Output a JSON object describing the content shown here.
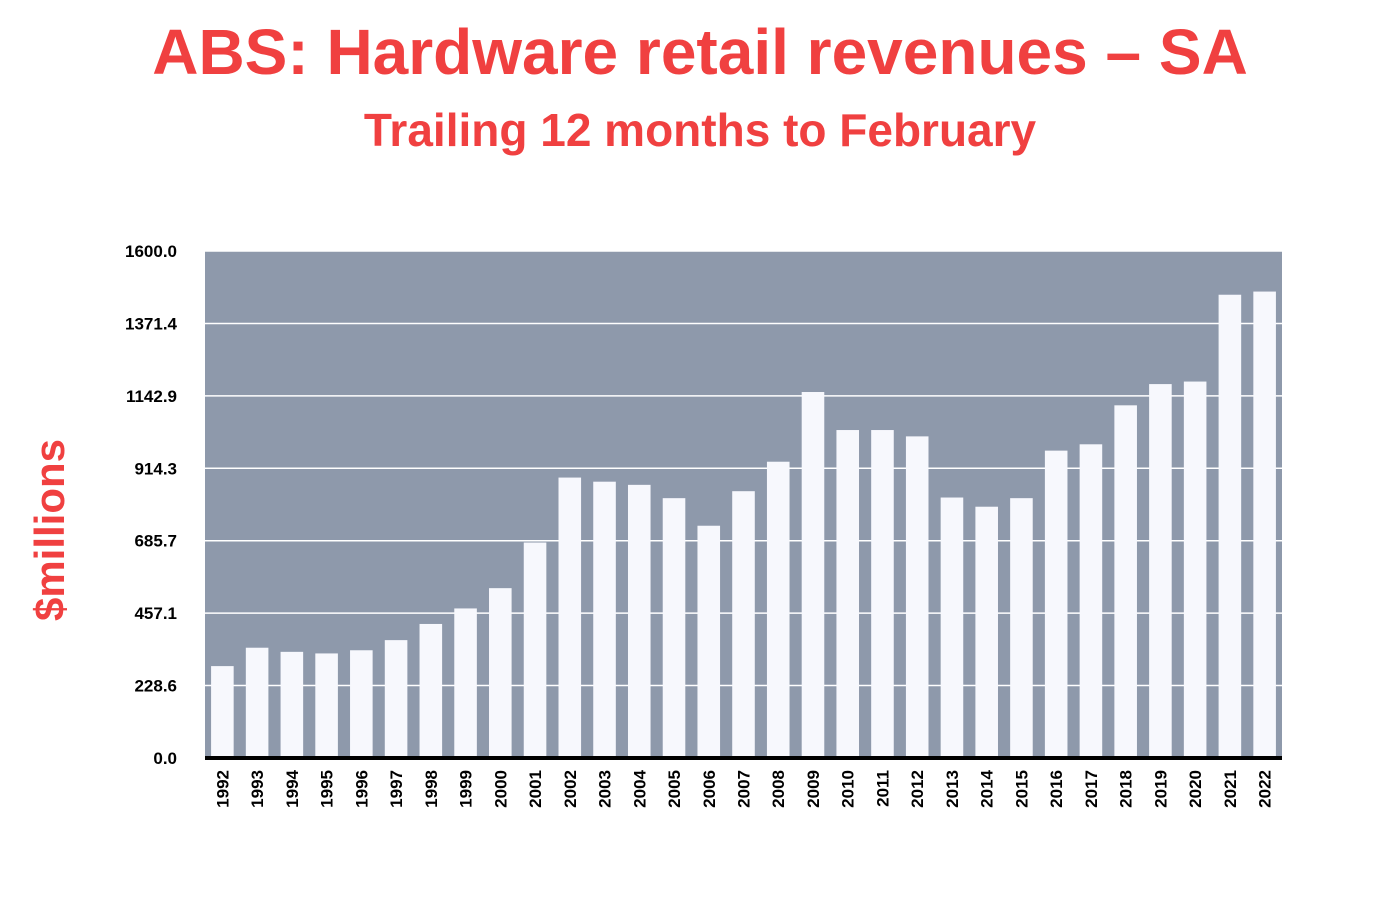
{
  "colors": {
    "title": "#f04040",
    "plot_bg": "#8e99ab",
    "bar": "#f7f8fd",
    "grid": "#ffffff",
    "axis": "#000000"
  },
  "chart_data": {
    "type": "bar",
    "title": "ABS: Hardware retail revenues – SA",
    "subtitle": "Trailing 12 months to February",
    "xlabel": "",
    "ylabel": "$millions",
    "ylim": [
      0,
      1600
    ],
    "yticks": [
      "0.0",
      "228.6",
      "457.1",
      "685.7",
      "914.3",
      "1142.9",
      "1371.4",
      "1600.0"
    ],
    "grid": true,
    "legend": "none",
    "categories": [
      "1992",
      "1993",
      "1994",
      "1995",
      "1996",
      "1997",
      "1998",
      "1999",
      "2000",
      "2001",
      "2002",
      "2003",
      "2004",
      "2005",
      "2006",
      "2007",
      "2008",
      "2009",
      "2010",
      "2011",
      "2012",
      "2013",
      "2014",
      "2015",
      "2016",
      "2017",
      "2018",
      "2019",
      "2020",
      "2021",
      "2022"
    ],
    "values": [
      290,
      348,
      335,
      330,
      340,
      372,
      423,
      472,
      536,
      680,
      885,
      872,
      862,
      820,
      733,
      842,
      935,
      1155,
      1035,
      1035,
      1015,
      822,
      793,
      820,
      970,
      990,
      1113,
      1180,
      1188,
      1462,
      1472
    ]
  }
}
